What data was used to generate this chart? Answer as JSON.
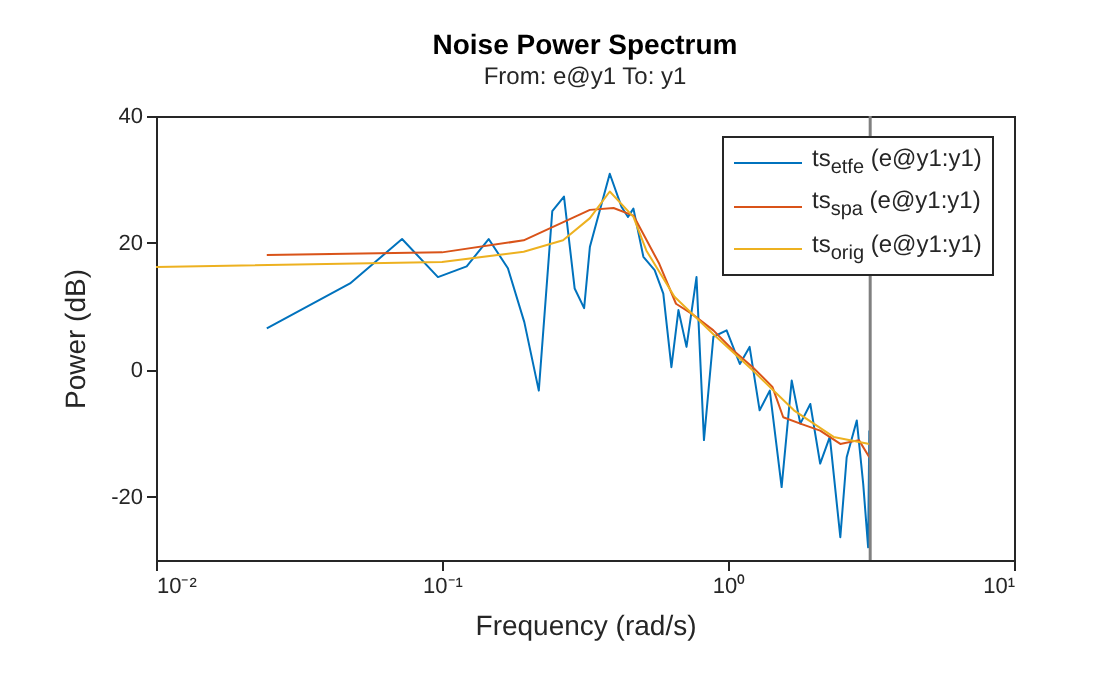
{
  "chart_data": {
    "type": "line",
    "title": "Noise Power Spectrum",
    "subtitle": "From: e@y1  To: y1",
    "xlabel": "Frequency (rad/s)",
    "ylabel": "Power (dB)",
    "log": "x",
    "xlim": [
      0.01,
      10
    ],
    "xticks": [
      {
        "value": 0.01,
        "label": "10⁻²"
      },
      {
        "value": 0.1,
        "label": "10⁻¹"
      },
      {
        "value": 1,
        "label": "10⁰"
      },
      {
        "value": 10,
        "label": "10¹"
      }
    ],
    "ylim": [
      -30,
      40
    ],
    "yticks": [
      -20,
      0,
      20,
      40
    ],
    "grid": false,
    "legend": "top right",
    "ref_lines": [
      {
        "axis": "x",
        "value": 3.14159,
        "color": "#808080"
      }
    ],
    "series": [
      {
        "name": "ts$_{etfe}$ (e@y1:y1)",
        "color": "#0072bd",
        "x": [
          0.0244,
          0.0477,
          0.0725,
          0.0968,
          0.122,
          0.1456,
          0.17,
          0.194,
          0.218,
          0.243,
          0.267,
          0.291,
          0.314,
          0.329,
          0.386,
          0.424,
          0.447,
          0.467,
          0.506,
          0.554,
          0.594,
          0.634,
          0.671,
          0.716,
          0.776,
          0.824,
          0.889,
          0.989,
          1.1,
          1.19,
          1.29,
          1.4,
          1.54,
          1.67,
          1.79,
          1.94,
          2.1,
          2.27,
          2.47,
          2.6,
          2.82,
          2.97,
          3.09,
          3.12
        ],
        "values": [
          6.5,
          13.6,
          20.6,
          14.6,
          16.3,
          20.6,
          16,
          7.5,
          -3.3,
          25,
          27.3,
          12.8,
          9.7,
          19.4,
          30.9,
          25.7,
          24.1,
          25.4,
          17.8,
          15.7,
          12,
          0.4,
          9.4,
          3.6,
          14.6,
          -11.1,
          5.2,
          6.2,
          0.9,
          3.6,
          -6.4,
          -3.3,
          -18.5,
          -1.7,
          -8.5,
          -5.4,
          -14.8,
          -10.6,
          -26.4,
          -13.8,
          -8,
          -18,
          -28,
          -9.6
        ]
      },
      {
        "name": "ts$_{spa}$ (e@y1:y1)",
        "color": "#d95319",
        "x": [
          0.0244,
          0.1,
          0.193,
          0.329,
          0.398,
          0.467,
          0.575,
          0.658,
          0.748,
          0.889,
          1.04,
          1.22,
          1.43,
          1.56,
          1.79,
          2.1,
          2.47,
          2.87,
          3.12
        ],
        "values": [
          18.1,
          18.5,
          20.4,
          25.2,
          25.5,
          24.3,
          16.7,
          10.4,
          8.8,
          6.2,
          3.1,
          0.4,
          -2.7,
          -7.5,
          -8.5,
          -9.6,
          -11.7,
          -11.1,
          -13.8
        ]
      },
      {
        "name": "ts$_{orig}$ (e@y1:y1)",
        "color": "#edb120",
        "x": [
          0.01,
          0.1,
          0.193,
          0.265,
          0.329,
          0.386,
          0.467,
          0.518,
          0.65,
          0.889,
          1.22,
          1.7,
          2.34,
          3.12
        ],
        "values": [
          16.2,
          17,
          18.6,
          20.4,
          23.9,
          28.1,
          24.1,
          18.8,
          11.5,
          5.6,
          -0.1,
          -6.4,
          -10.6,
          -11.7
        ]
      }
    ]
  }
}
